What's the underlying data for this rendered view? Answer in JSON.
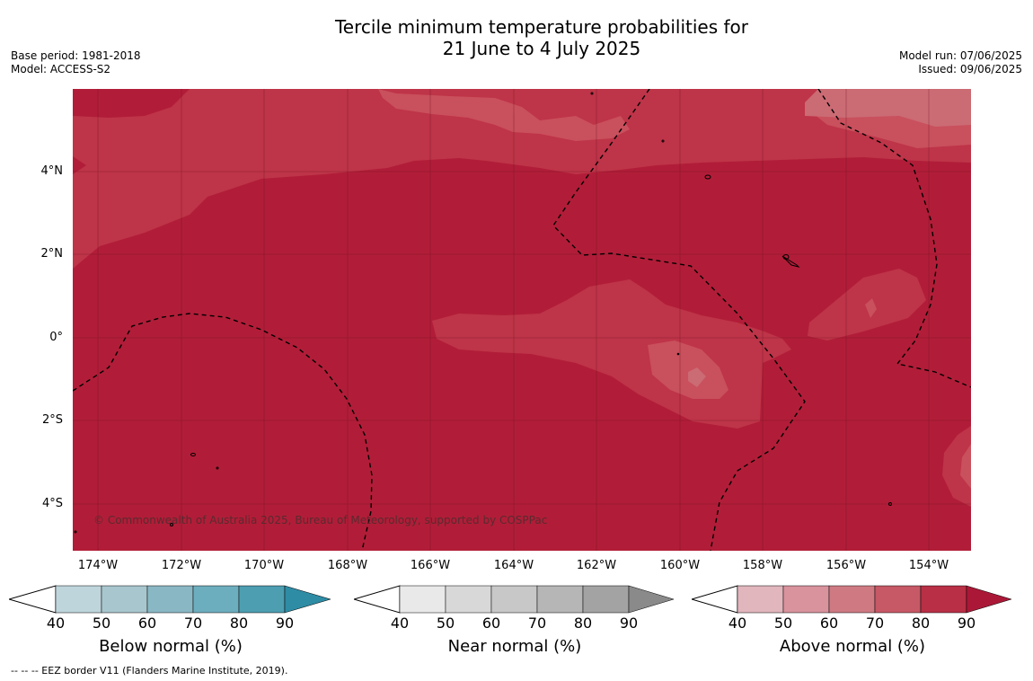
{
  "title": {
    "line1": "Tercile minimum temperature probabilities for",
    "line2": "21 June to 4 July 2025"
  },
  "meta_left": {
    "base_period": "Base period: 1981-2018",
    "model": "Model: ACCESS-S2"
  },
  "meta_right": {
    "model_run": "Model run: 07/06/2025",
    "issued": "Issued: 09/06/2025"
  },
  "map": {
    "lat_labels": [
      "4°N",
      "2°N",
      "0°",
      "2°S",
      "4°S"
    ],
    "lon_labels": [
      "174°W",
      "172°W",
      "170°W",
      "168°W",
      "166°W",
      "164°W",
      "162°W",
      "160°W",
      "158°W",
      "156°W",
      "154°W"
    ],
    "copyright": "© Commonwealth of Australia 2025, Bureau of Meteorology, supported by COSPPac",
    "colors": {
      "above_90": "#b11d38",
      "above_80": "#be3448",
      "above_70": "#c9505d",
      "above_60": "#cb6b74"
    }
  },
  "colorbars": [
    {
      "label": "Below normal (%)",
      "ticks": [
        "40",
        "50",
        "60",
        "70",
        "80",
        "90"
      ],
      "colors": [
        "#bfd5dc",
        "#a8c6cd",
        "#8ab7c4",
        "#6daebe",
        "#4d9eb1",
        "#2e8ca5"
      ]
    },
    {
      "label": "Near normal (%)",
      "ticks": [
        "40",
        "50",
        "60",
        "70",
        "80",
        "90"
      ],
      "colors": [
        "#e9e9e9",
        "#d8d8d8",
        "#c8c8c8",
        "#b6b6b6",
        "#a3a3a3",
        "#8a8a8a"
      ]
    },
    {
      "label": "Above normal (%)",
      "ticks": [
        "40",
        "50",
        "60",
        "70",
        "80",
        "90"
      ],
      "colors": [
        "#e1b6bd",
        "#d8939d",
        "#cf7a82",
        "#c75866",
        "#b92f45",
        "#ab1837"
      ]
    }
  ],
  "footnote": "-- -- -- EEZ border V11 (Flanders Marine Institute, 2019)."
}
